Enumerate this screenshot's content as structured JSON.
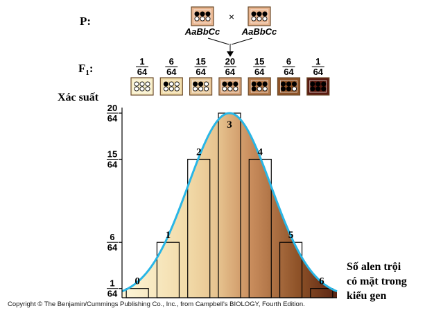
{
  "parents": {
    "label": "P:",
    "cross_symbol": "×",
    "parent1": {
      "genotype": "AaBbCc",
      "dots": [
        1,
        1,
        1,
        0,
        0,
        0
      ]
    },
    "parent2": {
      "genotype": "AaBbCc",
      "dots": [
        1,
        1,
        1,
        0,
        0,
        0
      ]
    }
  },
  "f1": {
    "label": "F",
    "label_sub": "1",
    "label_suffix": ":",
    "fractions": [
      {
        "num": "1",
        "den": "64",
        "dominant": 0,
        "fill": "#f8efc9"
      },
      {
        "num": "6",
        "den": "64",
        "dominant": 1,
        "fill": "#f1dca9"
      },
      {
        "num": "15",
        "den": "64",
        "dominant": 2,
        "fill": "#e7c79a"
      },
      {
        "num": "20",
        "den": "64",
        "dominant": 3,
        "fill": "#d7a47a"
      },
      {
        "num": "15",
        "den": "64",
        "dominant": 4,
        "fill": "#b67a4a"
      },
      {
        "num": "6",
        "den": "64",
        "dominant": 5,
        "fill": "#8f5327"
      },
      {
        "num": "1",
        "den": "64",
        "dominant": 6,
        "fill": "#5a1a10"
      }
    ]
  },
  "chart_data": {
    "type": "bar",
    "ylabel": "Xác suất",
    "xlabel_lines": [
      "Số alen trội",
      "có mặt trong",
      "kiểu gen"
    ],
    "categories": [
      "0",
      "1",
      "2",
      "3",
      "4",
      "5",
      "6"
    ],
    "values": [
      1,
      6,
      15,
      20,
      15,
      6,
      1
    ],
    "value_denominator": 64,
    "yticks": [
      {
        "num": "1",
        "den": "64",
        "value": 1
      },
      {
        "num": "6",
        "den": "64",
        "value": 6
      },
      {
        "num": "15",
        "den": "64",
        "value": 15
      },
      {
        "num": "20",
        "den": "64",
        "value": 20
      }
    ],
    "ylim": [
      0,
      20
    ],
    "curve_color": "#29b6e6",
    "gradient_colors": [
      "#fdf6d8",
      "#f2dba9",
      "#e6c28e",
      "#c98d5d",
      "#8e5228",
      "#5a2412"
    ]
  },
  "copyright": "Copyright © The Benjamin/Cummings Publishing Co., Inc., from Campbell's BIOLOGY, Fourth Edition."
}
